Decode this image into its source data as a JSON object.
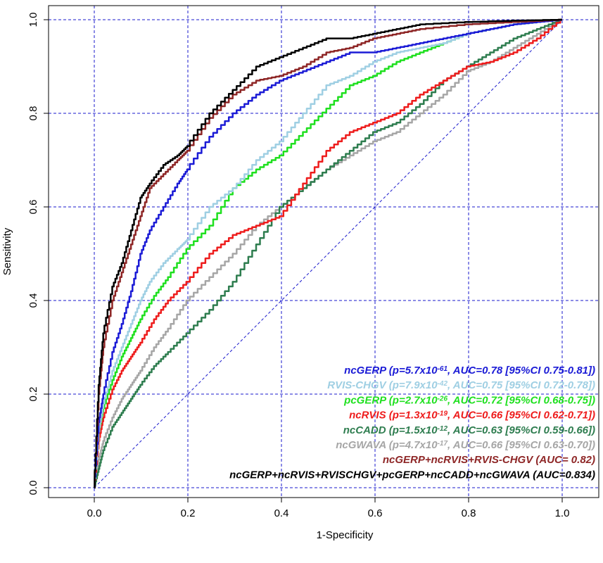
{
  "chart_data": {
    "type": "line",
    "xlabel": "1-Specificity",
    "ylabel": "Sensitivity",
    "xlim": [
      -0.1,
      1.08
    ],
    "ylim": [
      -0.04,
      1.04
    ],
    "xticks": [
      0.0,
      0.2,
      0.4,
      0.6,
      0.8,
      1.0
    ],
    "yticks": [
      0.0,
      0.2,
      0.4,
      0.6,
      0.8,
      1.0
    ],
    "xtick_labels": [
      "0.0",
      "0.2",
      "0.4",
      "0.6",
      "0.8",
      "1.0"
    ],
    "ytick_labels": [
      "0.0",
      "0.2",
      "0.4",
      "0.6",
      "0.8",
      "1.0"
    ],
    "grid": true,
    "grid_color": "#1a1acc",
    "reference_line": {
      "x": [
        0,
        1
      ],
      "y": [
        0,
        1
      ],
      "color": "#1a1acc"
    },
    "legend_position": "bottom-right",
    "series": [
      {
        "name": "ncGWAVA",
        "legend_label": "ncGWAVA (p=4.7x10-17, AUC=0.66 [95%CI 0.63-0.70])",
        "legend_parts": [
          "ncGWAVA (p=4.7x10",
          "-17",
          ", AUC=0.66 [95%CI 0.63-0.70])"
        ],
        "color": "#a6a6a6",
        "x": [
          0,
          0.01,
          0.02,
          0.04,
          0.06,
          0.08,
          0.1,
          0.13,
          0.16,
          0.2,
          0.25,
          0.3,
          0.35,
          0.4,
          0.45,
          0.5,
          0.55,
          0.6,
          0.65,
          0.7,
          0.75,
          0.8,
          0.85,
          0.9,
          0.95,
          1.0
        ],
        "y": [
          0,
          0.06,
          0.1,
          0.15,
          0.19,
          0.22,
          0.25,
          0.3,
          0.34,
          0.4,
          0.45,
          0.5,
          0.56,
          0.6,
          0.64,
          0.68,
          0.71,
          0.74,
          0.76,
          0.8,
          0.84,
          0.89,
          0.91,
          0.94,
          0.97,
          1.0
        ]
      },
      {
        "name": "ncCADD",
        "legend_label": "ncCADD (p=1.5x10-12, AUC=0.63 [95%CI 0.59-0.66])",
        "legend_parts": [
          "ncCADD (p=1.5x10",
          "-12",
          ", AUC=0.63 [95%CI 0.59-0.66])"
        ],
        "color": "#2e7d4f",
        "x": [
          0,
          0.01,
          0.02,
          0.04,
          0.06,
          0.08,
          0.1,
          0.13,
          0.16,
          0.2,
          0.25,
          0.3,
          0.35,
          0.4,
          0.45,
          0.5,
          0.55,
          0.6,
          0.65,
          0.7,
          0.75,
          0.8,
          0.85,
          0.9,
          0.95,
          1.0
        ],
        "y": [
          0,
          0.04,
          0.08,
          0.13,
          0.16,
          0.19,
          0.22,
          0.26,
          0.29,
          0.33,
          0.38,
          0.44,
          0.52,
          0.6,
          0.64,
          0.68,
          0.72,
          0.76,
          0.78,
          0.82,
          0.87,
          0.9,
          0.93,
          0.96,
          0.98,
          1.0
        ]
      },
      {
        "name": "ncRVIS",
        "legend_label": "ncRVIS (p=1.3x10-19, AUC=0.66 [95%CI 0.62-0.71])",
        "legend_parts": [
          "ncRVIS (p=1.3x10",
          "-19",
          ", AUC=0.66 [95%CI 0.62-0.71])"
        ],
        "color": "#ee1c1c",
        "x": [
          0,
          0.01,
          0.02,
          0.04,
          0.06,
          0.08,
          0.1,
          0.13,
          0.16,
          0.2,
          0.25,
          0.3,
          0.35,
          0.4,
          0.45,
          0.5,
          0.55,
          0.6,
          0.65,
          0.7,
          0.75,
          0.8,
          0.85,
          0.9,
          0.95,
          1.0
        ],
        "y": [
          0,
          0.1,
          0.15,
          0.21,
          0.25,
          0.28,
          0.31,
          0.36,
          0.4,
          0.44,
          0.5,
          0.54,
          0.56,
          0.58,
          0.65,
          0.72,
          0.76,
          0.78,
          0.8,
          0.84,
          0.87,
          0.9,
          0.91,
          0.93,
          0.96,
          1.0
        ]
      },
      {
        "name": "pcGERP",
        "legend_label": "pcGERP (p=2.7x10-26, AUC=0.72 [95%CI 0.68-0.75])",
        "legend_parts": [
          "pcGERP (p=2.7x10",
          "-26",
          ", AUC=0.72 [95%CI 0.68-0.75])"
        ],
        "color": "#1fe01f",
        "x": [
          0,
          0.01,
          0.02,
          0.04,
          0.06,
          0.08,
          0.1,
          0.13,
          0.16,
          0.2,
          0.25,
          0.3,
          0.35,
          0.4,
          0.45,
          0.5,
          0.55,
          0.6,
          0.65,
          0.7,
          0.75,
          0.8,
          0.85,
          0.9,
          0.95,
          1.0
        ],
        "y": [
          0,
          0.12,
          0.17,
          0.23,
          0.28,
          0.32,
          0.36,
          0.41,
          0.45,
          0.51,
          0.56,
          0.64,
          0.68,
          0.71,
          0.76,
          0.81,
          0.86,
          0.88,
          0.91,
          0.93,
          0.95,
          0.97,
          0.98,
          0.99,
          0.995,
          1.0
        ]
      },
      {
        "name": "RVIS-CHGV",
        "legend_label": "RVIS-CHGV (p=7.9x10-42, AUC=0.75 [95%CI 0.72-0.78])",
        "legend_parts": [
          "RVIS-CHGV (p=7.9x10",
          "-42",
          ", AUC=0.75 [95%CI 0.72-0.78])"
        ],
        "color": "#9fcfe3",
        "x": [
          0,
          0.01,
          0.02,
          0.04,
          0.06,
          0.08,
          0.1,
          0.12,
          0.15,
          0.18,
          0.2,
          0.25,
          0.3,
          0.35,
          0.4,
          0.45,
          0.5,
          0.55,
          0.6,
          0.65,
          0.7,
          0.75,
          0.8,
          0.85,
          0.9,
          0.95,
          1.0
        ],
        "y": [
          0,
          0.12,
          0.18,
          0.25,
          0.3,
          0.35,
          0.4,
          0.44,
          0.48,
          0.51,
          0.53,
          0.6,
          0.64,
          0.7,
          0.74,
          0.8,
          0.86,
          0.88,
          0.91,
          0.93,
          0.94,
          0.95,
          0.97,
          0.98,
          0.99,
          0.995,
          1.0
        ]
      },
      {
        "name": "ncGERP",
        "legend_label": "ncGERP (p=5.7x10-61, AUC=0.78 [95%CI 0.75-0.81])",
        "legend_parts": [
          "ncGERP (p=5.7x10",
          "-61",
          ", AUC=0.78 [95%CI 0.75-0.81])"
        ],
        "color": "#1b1bd6",
        "x": [
          0,
          0.01,
          0.02,
          0.04,
          0.06,
          0.08,
          0.1,
          0.12,
          0.15,
          0.18,
          0.2,
          0.25,
          0.3,
          0.35,
          0.4,
          0.45,
          0.5,
          0.55,
          0.6,
          0.65,
          0.7,
          0.75,
          0.8,
          0.85,
          0.9,
          0.95,
          1.0
        ],
        "y": [
          0,
          0.14,
          0.2,
          0.29,
          0.35,
          0.42,
          0.5,
          0.55,
          0.6,
          0.65,
          0.68,
          0.75,
          0.8,
          0.84,
          0.87,
          0.89,
          0.91,
          0.93,
          0.93,
          0.94,
          0.95,
          0.96,
          0.97,
          0.98,
          0.99,
          0.995,
          1.0
        ]
      },
      {
        "name": "ncGERP+ncRVIS+RVIS-CHGV",
        "legend_label": "ncGERP+ncRVIS+RVIS-CHGV (AUC= 0.82)",
        "legend_parts": [
          "ncGERP+ncRVIS+RVIS-CHGV (AUC= 0.82)",
          "",
          ""
        ],
        "color": "#8e2626",
        "x": [
          0,
          0.01,
          0.02,
          0.04,
          0.06,
          0.08,
          0.1,
          0.12,
          0.15,
          0.18,
          0.2,
          0.25,
          0.3,
          0.35,
          0.4,
          0.45,
          0.5,
          0.55,
          0.6,
          0.65,
          0.7,
          0.8,
          0.9,
          1.0
        ],
        "y": [
          0,
          0.2,
          0.3,
          0.4,
          0.46,
          0.52,
          0.58,
          0.64,
          0.67,
          0.7,
          0.72,
          0.79,
          0.84,
          0.87,
          0.88,
          0.9,
          0.93,
          0.94,
          0.96,
          0.97,
          0.98,
          0.99,
          0.995,
          1.0
        ]
      },
      {
        "name": "ncGERP+ncRVIS+RVISCHGV+pcGERP+ncCADD+ncGWAVA",
        "legend_label": "ncGERP+ncRVIS+RVISCHGV+pcGERP+ncCADD+ncGWAVA (AUC=0.834)",
        "legend_parts": [
          "ncGERP+ncRVIS+RVISCHGV+pcGERP+ncCADD+ncGWAVA (AUC=0.834)",
          "",
          ""
        ],
        "color": "#000000",
        "x": [
          0,
          0.01,
          0.02,
          0.04,
          0.06,
          0.08,
          0.1,
          0.12,
          0.15,
          0.18,
          0.2,
          0.25,
          0.3,
          0.35,
          0.4,
          0.45,
          0.5,
          0.55,
          0.6,
          0.65,
          0.7,
          0.8,
          0.9,
          1.0
        ],
        "y": [
          0,
          0.22,
          0.33,
          0.43,
          0.48,
          0.55,
          0.62,
          0.65,
          0.69,
          0.71,
          0.73,
          0.8,
          0.85,
          0.9,
          0.92,
          0.94,
          0.96,
          0.96,
          0.97,
          0.98,
          0.99,
          0.995,
          0.998,
          1.0
        ]
      }
    ],
    "legend_order": [
      5,
      4,
      3,
      2,
      1,
      0,
      6,
      7
    ]
  }
}
